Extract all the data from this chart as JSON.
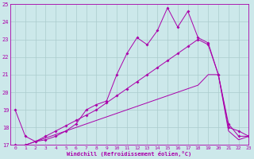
{
  "background_color": "#cce8ea",
  "grid_color": "#aacccc",
  "line_color": "#aa00aa",
  "xlabel": "Windchill (Refroidissement éolien,°C)",
  "xlim": [
    -0.5,
    23
  ],
  "ylim": [
    17,
    25
  ],
  "yticks": [
    17,
    18,
    19,
    20,
    21,
    22,
    23,
    24,
    25
  ],
  "xticks": [
    0,
    1,
    2,
    3,
    4,
    5,
    6,
    7,
    8,
    9,
    10,
    11,
    12,
    13,
    14,
    15,
    16,
    17,
    18,
    19,
    20,
    21,
    22,
    23
  ],
  "series1_x": [
    0,
    1,
    2,
    3,
    4,
    5,
    6,
    7,
    8,
    9,
    10,
    11,
    12,
    13,
    14,
    15,
    16,
    17,
    18,
    19,
    20,
    21,
    22,
    23
  ],
  "series1_y": [
    17.0,
    17.0,
    17.0,
    17.0,
    17.0,
    17.0,
    17.0,
    17.0,
    17.0,
    17.0,
    17.0,
    17.0,
    17.0,
    17.0,
    17.0,
    17.0,
    17.0,
    17.0,
    17.0,
    17.0,
    17.0,
    17.0,
    17.0,
    17.0
  ],
  "series2_x": [
    0,
    1,
    2,
    3,
    4,
    5,
    6,
    7,
    8,
    9,
    10,
    11,
    12,
    13,
    14,
    15,
    16,
    17,
    18,
    19,
    20,
    21,
    22,
    23
  ],
  "series2_y": [
    17.0,
    17.0,
    17.2,
    17.4,
    17.6,
    17.8,
    18.0,
    18.2,
    18.4,
    18.6,
    18.8,
    19.0,
    19.2,
    19.4,
    19.6,
    19.8,
    20.0,
    20.2,
    20.4,
    21.0,
    21.0,
    17.8,
    17.3,
    17.5
  ],
  "series3_x": [
    0,
    1,
    2,
    3,
    4,
    5,
    6,
    7,
    8,
    9,
    10,
    11,
    12,
    13,
    14,
    15,
    16,
    17,
    18,
    19,
    20,
    21,
    22,
    23
  ],
  "series3_y": [
    17.0,
    17.0,
    17.2,
    17.5,
    17.8,
    18.1,
    18.4,
    18.7,
    19.0,
    19.4,
    19.8,
    20.2,
    20.6,
    21.0,
    21.4,
    21.8,
    22.2,
    22.6,
    23.0,
    22.7,
    21.0,
    18.2,
    17.5,
    17.5
  ],
  "series4_x": [
    0,
    1,
    2,
    3,
    4,
    5,
    6,
    7,
    8,
    9,
    10,
    11,
    12,
    13,
    14,
    15,
    16,
    17,
    18,
    19,
    20,
    21,
    22,
    23
  ],
  "series4_y": [
    19.0,
    17.5,
    17.2,
    17.3,
    17.5,
    17.8,
    18.2,
    19.0,
    19.3,
    19.5,
    21.0,
    22.2,
    23.1,
    22.7,
    23.5,
    24.8,
    23.7,
    24.6,
    23.1,
    22.8,
    21.0,
    18.0,
    17.8,
    17.5
  ],
  "has_markers_s3": true,
  "has_markers_s4": true,
  "marker_style": "D",
  "markersize": 2.0
}
